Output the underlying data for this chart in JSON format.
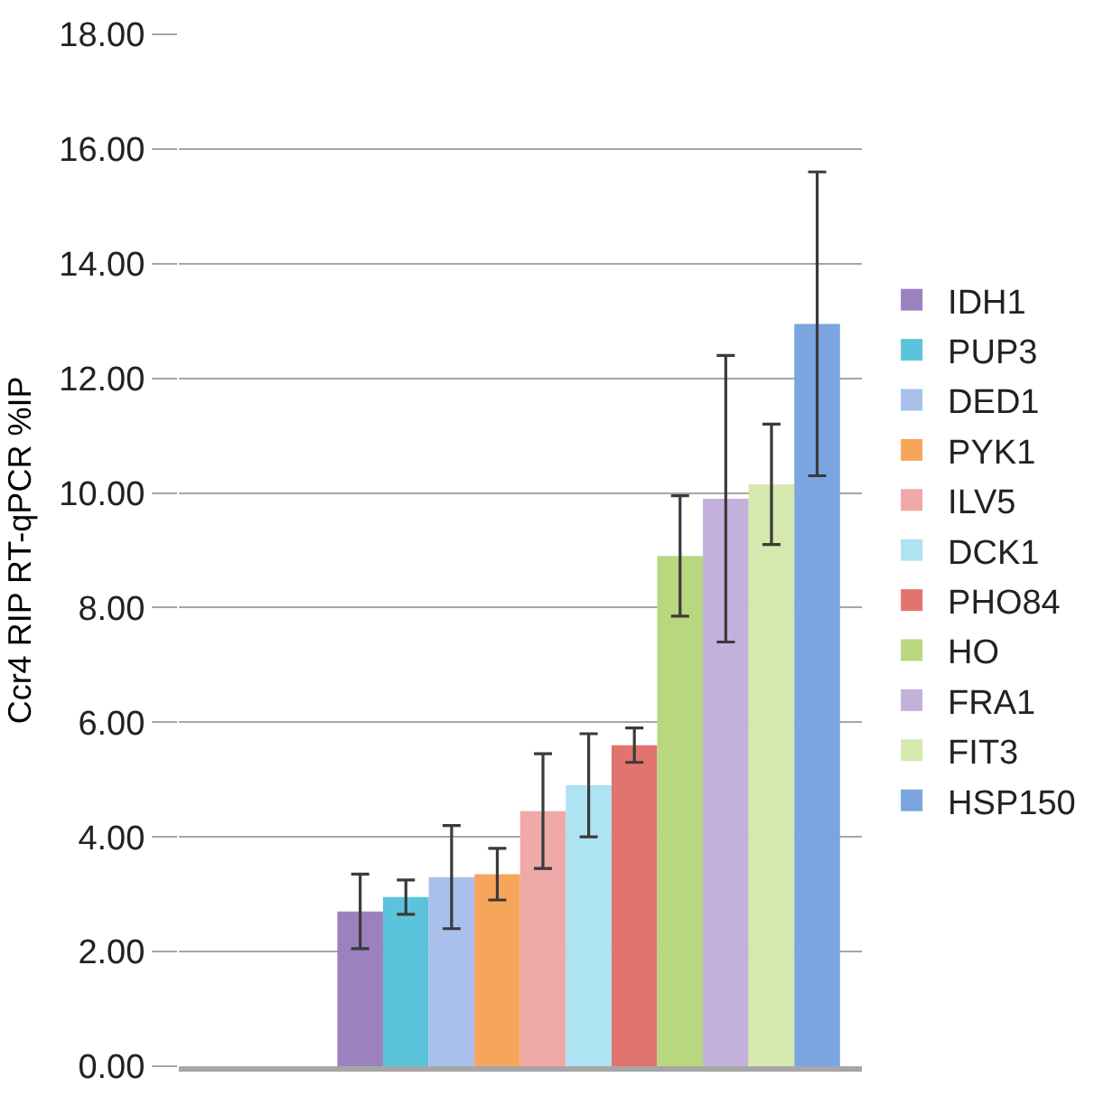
{
  "chart_data": {
    "type": "bar",
    "ylabel": "Ccr4 RIP RT-qPCR %IP",
    "categories": [
      null
    ],
    "series": [
      {
        "name": "IDH1",
        "color": "#9b82bf",
        "values": [
          2.7
        ],
        "errors": [
          0.65
        ]
      },
      {
        "name": "PUP3",
        "color": "#5cc3dc",
        "values": [
          2.95
        ],
        "errors": [
          0.3
        ]
      },
      {
        "name": "DED1",
        "color": "#a9c0ec",
        "values": [
          3.3
        ],
        "errors": [
          0.9
        ]
      },
      {
        "name": "PYK1",
        "color": "#f8a55c",
        "values": [
          3.35
        ],
        "errors": [
          0.45
        ]
      },
      {
        "name": "ILV5",
        "color": "#efa9a7",
        "values": [
          4.45
        ],
        "errors": [
          1.0
        ]
      },
      {
        "name": "DCK1",
        "color": "#ade3f2",
        "values": [
          4.9
        ],
        "errors": [
          0.9
        ]
      },
      {
        "name": "PHO84",
        "color": "#e27470",
        "values": [
          5.6
        ],
        "errors": [
          0.3
        ]
      },
      {
        "name": "HO",
        "color": "#b9d77f",
        "values": [
          8.9
        ],
        "errors": [
          1.05
        ]
      },
      {
        "name": "FRA1",
        "color": "#c4b1db",
        "values": [
          9.9
        ],
        "errors": [
          2.5
        ]
      },
      {
        "name": "FIT3",
        "color": "#d5e8ad",
        "values": [
          10.15
        ],
        "errors": [
          1.05
        ]
      },
      {
        "name": "HSP150",
        "color": "#7aa5e0",
        "values": [
          12.95
        ],
        "errors": [
          2.65
        ]
      }
    ],
    "ylim": [
      0,
      18
    ],
    "yticks": [
      {
        "value": 0,
        "label": "0.00"
      },
      {
        "value": 2,
        "label": "2.00"
      },
      {
        "value": 4,
        "label": "4.00"
      },
      {
        "value": 6,
        "label": "6.00"
      },
      {
        "value": 8,
        "label": "8.00"
      },
      {
        "value": 10,
        "label": "10.00"
      },
      {
        "value": 12,
        "label": "12.00"
      },
      {
        "value": 14,
        "label": "14.00"
      },
      {
        "value": 16,
        "label": "16.00"
      },
      {
        "value": 18,
        "label": "18.00"
      }
    ],
    "grid": "y",
    "legend": "right"
  }
}
